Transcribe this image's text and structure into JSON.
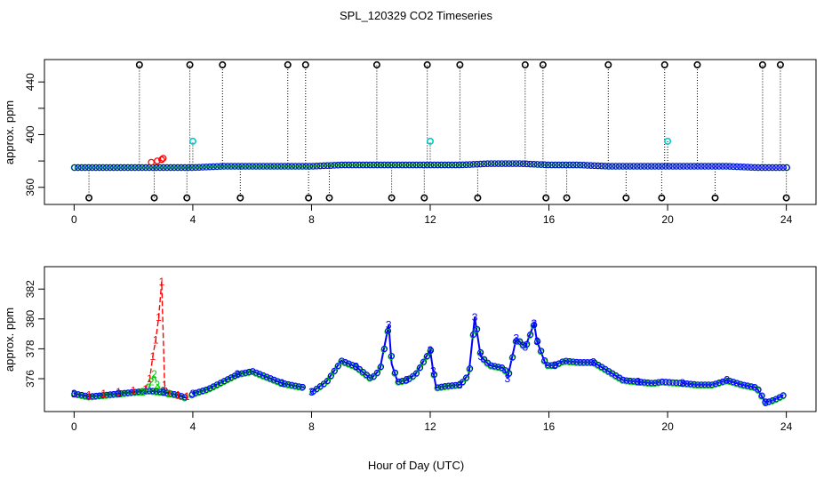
{
  "title": "SPL_120329  CO2 Timeseries",
  "xlabel": "Hour of Day (UTC)",
  "colors": {
    "series1": "#ff0000",
    "series2": "#00cc00",
    "series3": "#0000ff",
    "outlier_high": "#000000",
    "outlier_mid": "#00cccc"
  },
  "chart_data": [
    {
      "type": "scatter",
      "panel": "top",
      "ylabel": "approx. ppm",
      "xlim": [
        -1,
        25
      ],
      "ylim": [
        347,
        457
      ],
      "xticks": [
        0,
        4,
        8,
        12,
        16,
        20,
        24
      ],
      "yticks": [
        360,
        400,
        440
      ],
      "yticks_minor": [
        380,
        420
      ],
      "baseline": {
        "x": [
          0,
          1,
          2,
          3,
          4,
          5,
          6,
          7,
          8,
          9,
          10,
          11,
          12,
          13,
          14,
          15,
          16,
          17,
          18,
          19,
          20,
          21,
          22,
          23,
          24
        ],
        "y": [
          375,
          375,
          375,
          375,
          375,
          376,
          376,
          376,
          376,
          377,
          377,
          377,
          377,
          377,
          378,
          378,
          377,
          377,
          376,
          376,
          376,
          376,
          376,
          375,
          375
        ]
      },
      "high_outliers": {
        "y": 453,
        "x": [
          2.2,
          3.9,
          5.0,
          7.2,
          7.8,
          10.2,
          11.9,
          13.0,
          15.2,
          15.8,
          18.0,
          19.9,
          21.0,
          23.2,
          23.8
        ]
      },
      "low_outliers": {
        "y": 352,
        "x": [
          0.5,
          2.7,
          3.8,
          5.6,
          7.9,
          8.6,
          10.7,
          11.8,
          13.6,
          15.9,
          16.6,
          18.6,
          19.8,
          21.6,
          24.0
        ]
      },
      "mid_outliers": {
        "y": 395,
        "x": [
          4.0,
          12.0,
          20.0
        ]
      },
      "red_points": {
        "x": [
          2.6,
          2.8,
          2.95,
          3.0
        ],
        "y": [
          379,
          380,
          381,
          382
        ]
      }
    },
    {
      "type": "line",
      "panel": "bottom",
      "ylabel": "approx. ppm",
      "xlim": [
        -1,
        25
      ],
      "ylim": [
        373.8,
        383.5
      ],
      "xticks": [
        0,
        4,
        8,
        12,
        16,
        20,
        24
      ],
      "yticks": [
        376,
        378,
        380,
        382
      ],
      "series": [
        {
          "name": "1",
          "x": [
            0,
            0.5,
            1,
            1.5,
            2,
            2.4,
            2.55,
            2.65,
            2.75,
            2.85,
            2.95,
            3.05,
            3.2,
            3.5,
            3.8
          ],
          "y": [
            375.0,
            374.9,
            375.0,
            375.1,
            375.2,
            375.3,
            376.0,
            377.5,
            378.6,
            380.1,
            382.5,
            375.6,
            375.0,
            374.9,
            374.8
          ]
        },
        {
          "name": "2",
          "x": [
            2.3,
            2.5,
            2.6,
            2.7,
            2.8,
            3.0,
            3.2
          ],
          "y": [
            375.1,
            375.4,
            375.8,
            376.3,
            375.6,
            375.2,
            375.0
          ]
        },
        {
          "name": "3",
          "x": [
            0,
            0.5,
            1,
            1.5,
            2,
            2.5,
            3,
            3.5,
            3.8,
            4,
            4.5,
            5,
            5.5,
            6,
            6.5,
            7,
            7.5,
            7.8,
            8,
            8.5,
            9,
            9.5,
            10,
            10.3,
            10.6,
            10.7,
            10.9,
            11.2,
            11.5,
            12,
            12.1,
            12.2,
            12.5,
            13,
            13.3,
            13.5,
            13.7,
            14,
            14.5,
            14.6,
            14.9,
            15.2,
            15.5,
            15.6,
            15.9,
            16.2,
            16.5,
            17,
            17.5,
            18,
            18.5,
            19,
            19.5,
            19.8,
            20.5,
            21,
            21.5,
            22,
            22.5,
            23,
            23.3,
            23.6,
            23.9
          ],
          "y": [
            375.0,
            374.8,
            374.9,
            375.0,
            375.1,
            375.2,
            375.1,
            374.9,
            374.7,
            375.0,
            375.3,
            375.8,
            376.3,
            376.5,
            376.1,
            375.7,
            375.5,
            375.4,
            375.1,
            375.8,
            377.2,
            376.8,
            376.0,
            376.6,
            379.6,
            377.0,
            375.8,
            375.9,
            376.3,
            377.9,
            376.5,
            375.4,
            375.5,
            375.6,
            376.3,
            380.1,
            377.5,
            376.9,
            376.7,
            376.0,
            378.7,
            378.1,
            379.7,
            378.5,
            376.9,
            376.9,
            377.2,
            377.1,
            377.1,
            376.5,
            375.9,
            375.8,
            375.7,
            375.8,
            375.7,
            375.6,
            375.6,
            375.9,
            375.6,
            375.4,
            374.4,
            374.6,
            374.9
          ]
        }
      ]
    }
  ]
}
